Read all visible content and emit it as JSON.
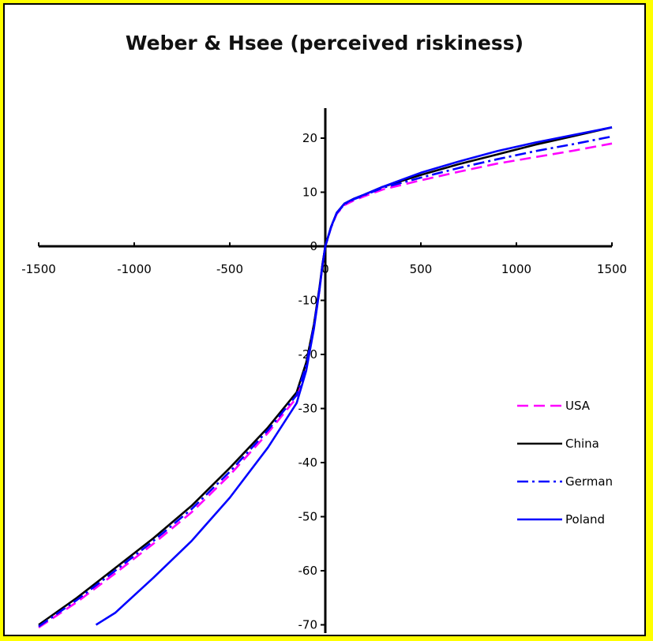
{
  "chart_data": {
    "type": "line",
    "title": "Weber & Hsee (perceived riskiness)",
    "xlabel": "",
    "ylabel": "",
    "xlim": [
      -1500,
      1500
    ],
    "ylim": [
      -70,
      25
    ],
    "x_ticks": [
      -1500,
      -1000,
      -500,
      0,
      500,
      1000,
      1500
    ],
    "x_tick_labels": [
      "-1500",
      "-1000",
      "-500",
      "0",
      "500",
      "1000",
      "1500"
    ],
    "y_ticks": [
      20,
      10,
      0,
      -10,
      -20,
      -30,
      -40,
      -50,
      -60,
      -70
    ],
    "y_tick_labels": [
      "20",
      "10",
      "0",
      "-10",
      "-20",
      "-30",
      "-40",
      "-50",
      "-60",
      "-70"
    ],
    "legend_position": "right",
    "series": [
      {
        "name": "USA",
        "color": "#ff00ff",
        "dash": "dashed",
        "x": [
          -1500,
          -1300,
          -1100,
          -900,
          -700,
          -500,
          -300,
          -150,
          -100,
          -60,
          -30,
          -15,
          0,
          30,
          60,
          100,
          150,
          200,
          300,
          500,
          700,
          900,
          1100,
          1300,
          1500
        ],
        "y": [
          -70.5,
          -65.8,
          -60.5,
          -55.0,
          -49.2,
          -42.3,
          -34.5,
          -28.0,
          -22.5,
          -15.0,
          -8.0,
          -3.5,
          0,
          3.5,
          6.0,
          7.6,
          8.5,
          9.2,
          10.5,
          12.2,
          13.8,
          15.3,
          16.5,
          17.7,
          19.0
        ]
      },
      {
        "name": "China",
        "color": "#000000",
        "dash": "solid",
        "x": [
          -1500,
          -1300,
          -1100,
          -900,
          -700,
          -500,
          -300,
          -150,
          -100,
          -60,
          -30,
          -15,
          0,
          30,
          60,
          100,
          150,
          200,
          300,
          500,
          700,
          900,
          1100,
          1300,
          1500
        ],
        "y": [
          -70.0,
          -65.0,
          -59.5,
          -54.0,
          -48.0,
          -41.0,
          -33.5,
          -27.0,
          -21.5,
          -14.5,
          -7.5,
          -3.3,
          0,
          3.6,
          6.2,
          7.9,
          8.8,
          9.5,
          11.0,
          13.2,
          15.2,
          17.0,
          18.8,
          20.4,
          22.0
        ]
      },
      {
        "name": "German",
        "color": "#0000ff",
        "dash": "dashdot",
        "x": [
          -1500,
          -1300,
          -1100,
          -900,
          -700,
          -500,
          -300,
          -150,
          -100,
          -60,
          -30,
          -15,
          0,
          30,
          60,
          100,
          150,
          200,
          300,
          500,
          700,
          900,
          1100,
          1300,
          1500
        ],
        "y": [
          -70.3,
          -65.4,
          -60.0,
          -54.5,
          -48.6,
          -41.7,
          -34.0,
          -27.5,
          -22.0,
          -14.8,
          -7.8,
          -3.4,
          0,
          3.5,
          6.1,
          7.8,
          8.7,
          9.4,
          10.8,
          12.7,
          14.5,
          16.1,
          17.6,
          18.9,
          20.3
        ]
      },
      {
        "name": "Poland",
        "color": "#0000ff",
        "dash": "solid",
        "x": [
          -1200,
          -1100,
          -900,
          -700,
          -500,
          -300,
          -150,
          -100,
          -60,
          -30,
          -15,
          0,
          30,
          60,
          100,
          150,
          200,
          300,
          500,
          700,
          900,
          1100,
          1300,
          1500
        ],
        "y": [
          -70.0,
          -67.8,
          -61.3,
          -54.5,
          -46.5,
          -37.2,
          -29.0,
          -23.0,
          -15.3,
          -8.0,
          -3.5,
          0,
          3.6,
          6.2,
          7.9,
          8.8,
          9.5,
          11.0,
          13.6,
          15.7,
          17.6,
          19.2,
          20.6,
          22.0
        ]
      }
    ]
  }
}
